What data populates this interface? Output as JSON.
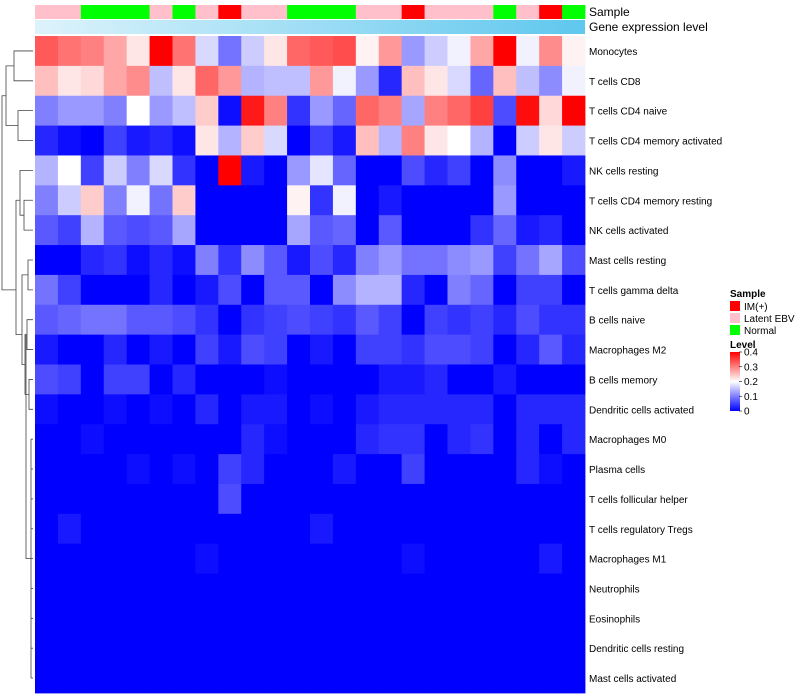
{
  "chart_data": {
    "type": "heatmap",
    "annotation_labels": {
      "sample": "Sample",
      "gene_expression": "Gene expression level"
    },
    "sample_groups": [
      "Latent EBV",
      "Latent EBV",
      "Normal",
      "Normal",
      "Normal",
      "Latent EBV",
      "Normal",
      "Latent EBV",
      "IM(+)",
      "Latent EBV",
      "Latent EBV",
      "Normal",
      "Normal",
      "Normal",
      "Latent EBV",
      "Latent EBV",
      "IM(+)",
      "Latent EBV",
      "Latent EBV",
      "Latent EBV",
      "Normal",
      "Latent EBV",
      "IM(+)",
      "Normal"
    ],
    "group_colors": {
      "IM(+)": "#ff0000",
      "Latent EBV": "#ffc0cb",
      "Normal": "#00ff00"
    },
    "gene_expression_gradient": [
      "#ddf3fb",
      "#5fc7ee"
    ],
    "rows": [
      "Monocytes",
      "T cells CD8",
      "T cells CD4 naive",
      "T cells CD4 memory activated",
      "NK cells resting",
      "T cells CD4 memory resting",
      "NK cells activated",
      "Mast cells resting",
      "T cells gamma delta",
      "B cells naive",
      "Macrophages M2",
      "B cells memory",
      "Dendritic cells activated",
      "Macrophages M0",
      "Plasma cells",
      "T cells follicular helper",
      "T cells regulatory  Tregs",
      "Macrophages M1",
      "Neutrophils",
      "Eosinophils",
      "Dendritic cells resting",
      "Mast cells activated"
    ],
    "values": [
      [
        0.33,
        0.31,
        0.3,
        0.27,
        0.22,
        0.4,
        0.31,
        0.17,
        0.09,
        0.16,
        0.22,
        0.32,
        0.33,
        0.34,
        0.21,
        0.28,
        0.12,
        0.16,
        0.19,
        0.27,
        0.4,
        0.19,
        0.29,
        0.21
      ],
      [
        0.25,
        0.22,
        0.23,
        0.27,
        0.29,
        0.15,
        0.22,
        0.32,
        0.28,
        0.14,
        0.15,
        0.15,
        0.28,
        0.19,
        0.12,
        0.03,
        0.25,
        0.22,
        0.17,
        0.08,
        0.25,
        0.15,
        0.11,
        0.19
      ],
      [
        0.1,
        0.12,
        0.12,
        0.1,
        0.2,
        0.12,
        0.15,
        0.24,
        0.01,
        0.38,
        0.3,
        0.04,
        0.12,
        0.08,
        0.32,
        0.3,
        0.13,
        0.3,
        0.32,
        0.35,
        0.06,
        0.39,
        0.23,
        0.4
      ],
      [
        0.03,
        0.01,
        0.0,
        0.05,
        0.02,
        0.03,
        0.01,
        0.22,
        0.14,
        0.24,
        0.17,
        0.0,
        0.05,
        0.02,
        0.25,
        0.14,
        0.3,
        0.22,
        0.2,
        0.14,
        0.0,
        0.16,
        0.22,
        0.16
      ],
      [
        0.14,
        0.2,
        0.05,
        0.16,
        0.1,
        0.17,
        0.04,
        0.0,
        0.4,
        0.02,
        0.0,
        0.12,
        0.18,
        0.08,
        0.0,
        0.0,
        0.06,
        0.03,
        0.05,
        0.0,
        0.11,
        0.0,
        0.0,
        0.02
      ],
      [
        0.1,
        0.16,
        0.24,
        0.1,
        0.19,
        0.09,
        0.24,
        0.0,
        0.0,
        0.0,
        0.0,
        0.21,
        0.04,
        0.19,
        0.0,
        0.02,
        0.0,
        0.0,
        0.0,
        0.0,
        0.12,
        0.0,
        0.0,
        0.0
      ],
      [
        0.07,
        0.05,
        0.14,
        0.07,
        0.06,
        0.07,
        0.13,
        0.0,
        0.0,
        0.0,
        0.0,
        0.13,
        0.07,
        0.08,
        0.0,
        0.07,
        0.0,
        0.0,
        0.0,
        0.04,
        0.08,
        0.02,
        0.03,
        0.0
      ],
      [
        0.0,
        0.0,
        0.03,
        0.04,
        0.01,
        0.03,
        0.01,
        0.1,
        0.04,
        0.11,
        0.07,
        0.02,
        0.06,
        0.03,
        0.1,
        0.12,
        0.09,
        0.09,
        0.11,
        0.12,
        0.05,
        0.09,
        0.13,
        0.06
      ],
      [
        0.09,
        0.05,
        0.0,
        0.0,
        0.0,
        0.03,
        0.0,
        0.02,
        0.06,
        0.0,
        0.07,
        0.07,
        0.0,
        0.11,
        0.14,
        0.14,
        0.03,
        0.0,
        0.1,
        0.08,
        0.0,
        0.05,
        0.05,
        0.0
      ],
      [
        0.07,
        0.08,
        0.09,
        0.09,
        0.07,
        0.07,
        0.06,
        0.04,
        0.0,
        0.04,
        0.05,
        0.06,
        0.05,
        0.04,
        0.07,
        0.05,
        0.0,
        0.05,
        0.04,
        0.05,
        0.03,
        0.06,
        0.04,
        0.04
      ],
      [
        0.02,
        0.0,
        0.0,
        0.03,
        0.0,
        0.02,
        0.0,
        0.05,
        0.02,
        0.06,
        0.05,
        0.0,
        0.02,
        0.0,
        0.05,
        0.05,
        0.04,
        0.06,
        0.06,
        0.05,
        0.0,
        0.03,
        0.07,
        0.03
      ],
      [
        0.06,
        0.05,
        0.0,
        0.05,
        0.05,
        0.0,
        0.03,
        0.0,
        0.0,
        0.0,
        0.01,
        0.0,
        0.0,
        0.0,
        0.0,
        0.02,
        0.02,
        0.03,
        0.0,
        0.0,
        0.02,
        0.0,
        0.0,
        0.0
      ],
      [
        0.01,
        0.0,
        0.0,
        0.01,
        0.0,
        0.01,
        0.0,
        0.03,
        0.0,
        0.02,
        0.02,
        0.0,
        0.01,
        0.0,
        0.02,
        0.03,
        0.03,
        0.03,
        0.03,
        0.03,
        0.0,
        0.03,
        0.03,
        0.03
      ],
      [
        0.0,
        0.0,
        0.01,
        0.0,
        0.0,
        0.0,
        0.0,
        0.0,
        0.0,
        0.03,
        0.01,
        0.0,
        0.0,
        0.0,
        0.03,
        0.04,
        0.04,
        0.0,
        0.03,
        0.04,
        0.0,
        0.03,
        0.0,
        0.03
      ],
      [
        0.0,
        0.0,
        0.0,
        0.0,
        0.01,
        0.0,
        0.01,
        0.0,
        0.05,
        0.03,
        0.0,
        0.0,
        0.0,
        0.02,
        0.0,
        0.0,
        0.05,
        0.0,
        0.0,
        0.0,
        0.0,
        0.03,
        0.01,
        0.0
      ],
      [
        0.0,
        0.0,
        0.0,
        0.0,
        0.0,
        0.0,
        0.0,
        0.0,
        0.06,
        0.0,
        0.0,
        0.0,
        0.0,
        0.0,
        0.0,
        0.0,
        0.0,
        0.0,
        0.0,
        0.0,
        0.0,
        0.0,
        0.0,
        0.0
      ],
      [
        0.0,
        0.02,
        0.0,
        0.0,
        0.0,
        0.0,
        0.0,
        0.0,
        0.0,
        0.0,
        0.0,
        0.0,
        0.02,
        0.0,
        0.0,
        0.0,
        0.0,
        0.0,
        0.0,
        0.0,
        0.0,
        0.0,
        0.0,
        0.0
      ],
      [
        0.0,
        0.0,
        0.0,
        0.0,
        0.0,
        0.0,
        0.0,
        0.01,
        0.0,
        0.0,
        0.0,
        0.0,
        0.0,
        0.0,
        0.0,
        0.0,
        0.01,
        0.0,
        0.0,
        0.0,
        0.0,
        0.0,
        0.02,
        0.0
      ],
      [
        0.0,
        0.0,
        0.0,
        0.0,
        0.0,
        0.0,
        0.0,
        0.0,
        0.0,
        0.0,
        0.0,
        0.0,
        0.0,
        0.0,
        0.0,
        0.0,
        0.0,
        0.0,
        0.0,
        0.0,
        0.0,
        0.0,
        0.0,
        0.0
      ],
      [
        0.0,
        0.0,
        0.0,
        0.0,
        0.0,
        0.0,
        0.0,
        0.0,
        0.0,
        0.0,
        0.0,
        0.0,
        0.0,
        0.0,
        0.0,
        0.0,
        0.0,
        0.0,
        0.0,
        0.0,
        0.0,
        0.0,
        0.0,
        0.0
      ],
      [
        0.0,
        0.0,
        0.0,
        0.0,
        0.0,
        0.0,
        0.0,
        0.0,
        0.0,
        0.0,
        0.0,
        0.0,
        0.0,
        0.0,
        0.0,
        0.0,
        0.0,
        0.0,
        0.0,
        0.0,
        0.0,
        0.0,
        0.0,
        0.0
      ],
      [
        0.0,
        0.0,
        0.0,
        0.0,
        0.0,
        0.0,
        0.0,
        0.0,
        0.0,
        0.0,
        0.0,
        0.0,
        0.0,
        0.0,
        0.0,
        0.0,
        0.0,
        0.0,
        0.0,
        0.0,
        0.0,
        0.0,
        0.0,
        0.0
      ]
    ],
    "color_scale": {
      "min": 0,
      "mid": 0.2,
      "max": 0.4,
      "low_color": "#0000ff",
      "mid_color": "#ffffff",
      "high_color": "#ff0000"
    },
    "legend": {
      "sample_title": "Sample",
      "sample_entries": [
        "IM(+)",
        "Latent EBV",
        "Normal"
      ],
      "level_title": "Level",
      "level_ticks": [
        "0.4",
        "0.3",
        "0.2",
        "0.1",
        "0"
      ],
      "level_tick_values": [
        0.4,
        0.3,
        0.2,
        0.1,
        0
      ],
      "placement": "right"
    },
    "dendrogram": "row clustering on left side"
  }
}
